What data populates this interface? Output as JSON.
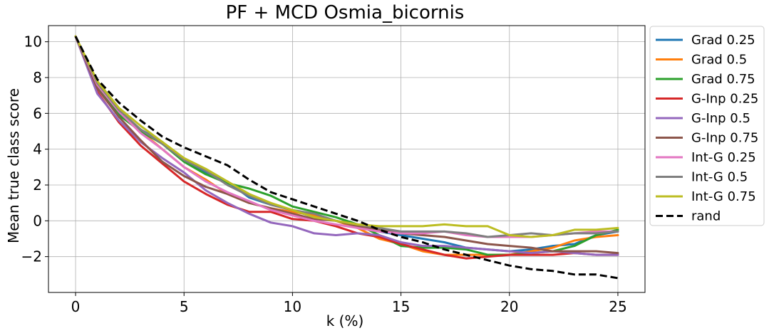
{
  "chart_data": {
    "type": "line",
    "title": "PF + MCD Osmia_bicornis",
    "xlabel": "k (%)",
    "ylabel": "Mean true class score",
    "xlim": [
      -1.25,
      26.25
    ],
    "ylim": [
      -4.0,
      10.9
    ],
    "xticks": [
      0,
      5,
      10,
      15,
      20,
      25
    ],
    "xtick_labels": [
      "0",
      "5",
      "10",
      "15",
      "20",
      "25"
    ],
    "yticks": [
      -2,
      0,
      2,
      4,
      6,
      8,
      10
    ],
    "ytick_labels": [
      "−2",
      "0",
      "2",
      "4",
      "6",
      "8",
      "10"
    ],
    "grid": true,
    "legend_position": "outside-right",
    "x": [
      0,
      1,
      2,
      3,
      4,
      5,
      6,
      7,
      8,
      9,
      10,
      11,
      12,
      13,
      14,
      15,
      16,
      17,
      18,
      19,
      20,
      21,
      22,
      23,
      24,
      25
    ],
    "series": [
      {
        "name": "Grad 0.25",
        "color": "#1f77b4",
        "style": "solid",
        "values": [
          10.3,
          7.6,
          6.0,
          5.1,
          4.4,
          3.4,
          2.7,
          2.2,
          1.3,
          0.9,
          0.6,
          0.2,
          0.0,
          -0.3,
          -0.6,
          -0.8,
          -1.0,
          -1.2,
          -1.5,
          -1.6,
          -1.7,
          -1.6,
          -1.4,
          -1.3,
          -0.8,
          -0.6
        ]
      },
      {
        "name": "Grad 0.5",
        "color": "#ff7f0e",
        "style": "solid",
        "values": [
          10.3,
          7.5,
          6.2,
          5.0,
          4.0,
          3.0,
          2.3,
          1.5,
          1.0,
          0.7,
          0.5,
          0.3,
          0.0,
          -0.4,
          -1.0,
          -1.3,
          -1.7,
          -1.9,
          -1.9,
          -1.9,
          -1.9,
          -1.7,
          -1.5,
          -1.1,
          -0.9,
          -0.8
        ]
      },
      {
        "name": "Grad 0.75",
        "color": "#2ca02c",
        "style": "solid",
        "values": [
          10.3,
          7.6,
          5.9,
          5.0,
          4.3,
          3.3,
          2.6,
          2.1,
          1.8,
          1.4,
          0.8,
          0.5,
          0.2,
          -0.2,
          -0.8,
          -1.4,
          -1.5,
          -1.5,
          -1.6,
          -1.9,
          -1.9,
          -1.8,
          -1.7,
          -1.4,
          -0.8,
          -0.5
        ]
      },
      {
        "name": "G-Inp 0.25",
        "color": "#d62728",
        "style": "solid",
        "values": [
          10.3,
          7.2,
          5.5,
          4.2,
          3.2,
          2.2,
          1.5,
          0.9,
          0.5,
          0.5,
          0.1,
          0.0,
          -0.3,
          -0.7,
          -0.9,
          -1.3,
          -1.6,
          -1.9,
          -2.1,
          -2.0,
          -1.9,
          -1.9,
          -1.9,
          -1.8,
          -1.9,
          -1.9
        ]
      },
      {
        "name": "G-Inp 0.5",
        "color": "#9467bd",
        "style": "solid",
        "values": [
          10.3,
          7.1,
          5.6,
          4.4,
          3.5,
          2.7,
          1.7,
          1.0,
          0.4,
          -0.1,
          -0.3,
          -0.7,
          -0.8,
          -0.7,
          -0.8,
          -1.2,
          -1.4,
          -1.4,
          -1.5,
          -1.6,
          -1.7,
          -1.8,
          -1.7,
          -1.8,
          -1.9,
          -1.9
        ]
      },
      {
        "name": "G-Inp 0.75",
        "color": "#8c564b",
        "style": "solid",
        "values": [
          10.3,
          7.4,
          5.8,
          4.5,
          3.3,
          2.5,
          1.9,
          1.5,
          1.0,
          0.7,
          0.4,
          0.1,
          0.0,
          -0.3,
          -0.5,
          -0.7,
          -0.8,
          -0.9,
          -1.1,
          -1.3,
          -1.4,
          -1.5,
          -1.7,
          -1.7,
          -1.7,
          -1.8
        ]
      },
      {
        "name": "Int-G 0.25",
        "color": "#e377c2",
        "style": "solid",
        "values": [
          10.3,
          7.6,
          6.1,
          4.9,
          4.0,
          3.0,
          2.2,
          1.6,
          1.1,
          0.6,
          0.3,
          0.0,
          -0.2,
          -0.4,
          -0.6,
          -0.7,
          -0.7,
          -0.6,
          -0.8,
          -0.9,
          -0.9,
          -0.9,
          -0.8,
          -0.7,
          -0.6,
          -0.6
        ]
      },
      {
        "name": "Int-G 0.5",
        "color": "#7f7f7f",
        "style": "solid",
        "values": [
          10.3,
          7.7,
          6.2,
          5.1,
          4.3,
          3.4,
          2.8,
          2.0,
          1.4,
          0.9,
          0.6,
          0.4,
          0.0,
          -0.2,
          -0.4,
          -0.6,
          -0.6,
          -0.6,
          -0.7,
          -0.9,
          -0.8,
          -0.7,
          -0.8,
          -0.7,
          -0.7,
          -0.6
        ]
      },
      {
        "name": "Int-G 0.75",
        "color": "#bcbd22",
        "style": "solid",
        "values": [
          10.3,
          7.8,
          6.3,
          5.3,
          4.4,
          3.5,
          2.9,
          2.2,
          1.5,
          1.0,
          0.6,
          0.2,
          0.0,
          -0.2,
          -0.3,
          -0.3,
          -0.3,
          -0.2,
          -0.3,
          -0.3,
          -0.8,
          -0.9,
          -0.8,
          -0.5,
          -0.5,
          -0.4
        ]
      },
      {
        "name": "rand",
        "color": "#000000",
        "style": "dashed",
        "values": [
          10.3,
          7.9,
          6.6,
          5.6,
          4.7,
          4.1,
          3.6,
          3.1,
          2.3,
          1.6,
          1.2,
          0.8,
          0.4,
          0.0,
          -0.5,
          -0.9,
          -1.2,
          -1.6,
          -1.9,
          -2.2,
          -2.5,
          -2.7,
          -2.8,
          -3.0,
          -3.0,
          -3.2
        ]
      }
    ]
  }
}
